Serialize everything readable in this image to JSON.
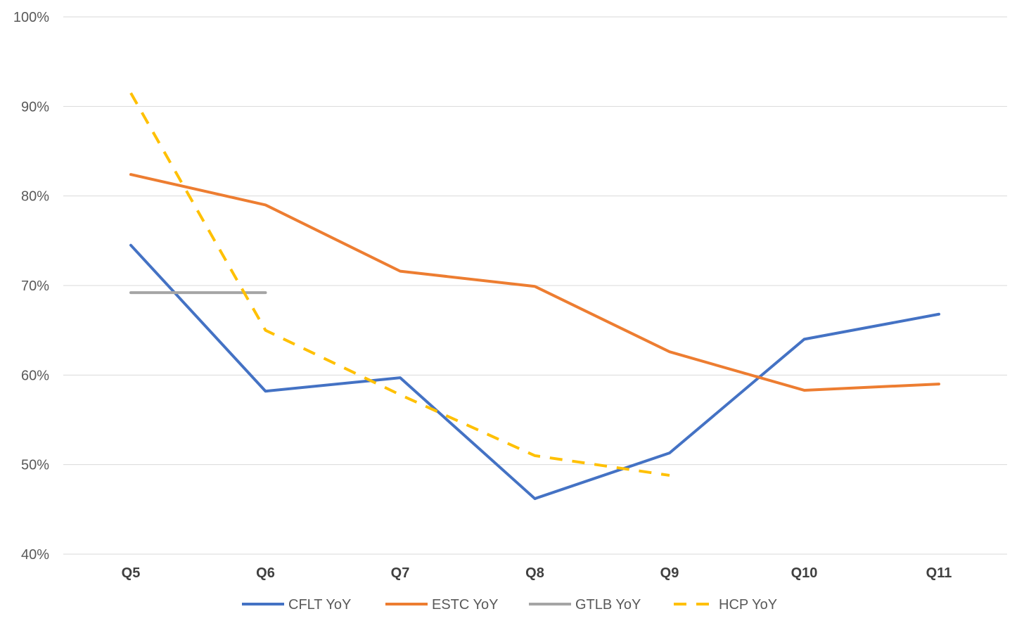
{
  "chart_data": {
    "type": "line",
    "categories": [
      "Q5",
      "Q6",
      "Q7",
      "Q8",
      "Q9",
      "Q10",
      "Q11"
    ],
    "ylim": [
      40,
      100
    ],
    "y_ticks": [
      "40%",
      "50%",
      "60%",
      "70%",
      "80%",
      "90%",
      "100%"
    ],
    "y_tick_values": [
      40,
      50,
      60,
      70,
      80,
      90,
      100
    ],
    "grid": true,
    "legend_position": "bottom",
    "series": [
      {
        "name": "CFLT YoY",
        "color": "#4472c4",
        "dash": "solid",
        "values": [
          74.5,
          58.2,
          59.7,
          46.2,
          51.3,
          64.0,
          66.8
        ]
      },
      {
        "name": "ESTC YoY",
        "color": "#ed7d31",
        "dash": "solid",
        "values": [
          82.4,
          79.0,
          71.6,
          69.9,
          62.6,
          58.3,
          59.0
        ]
      },
      {
        "name": "GTLB YoY",
        "color": "#a5a5a5",
        "dash": "solid",
        "values": [
          69.2,
          69.2,
          null,
          null,
          null,
          null,
          null
        ]
      },
      {
        "name": "HCP YoY",
        "color": "#ffc000",
        "dash": "dashed",
        "values": [
          91.5,
          65.0,
          57.8,
          51.0,
          48.8,
          null,
          null
        ]
      }
    ]
  }
}
